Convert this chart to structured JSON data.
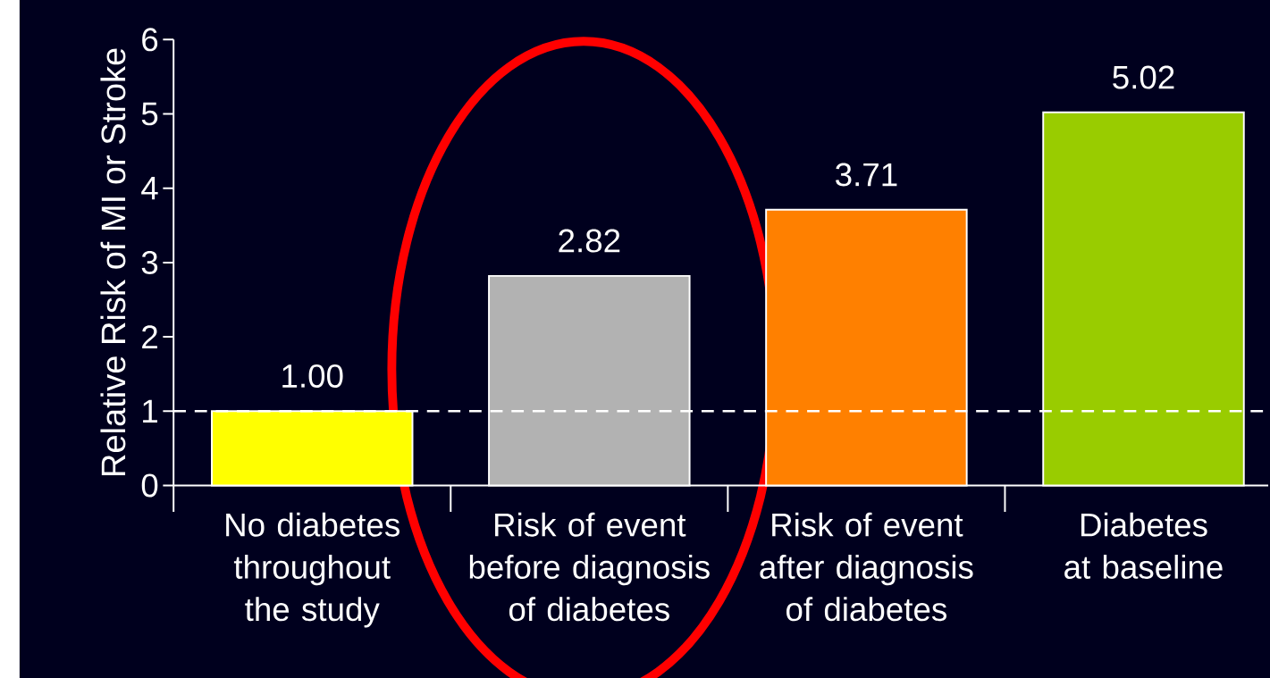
{
  "chart_data": {
    "type": "bar",
    "ylabel": "Relative Risk of MI or Stroke",
    "categories": [
      "No diabetes throughout the study",
      "Risk of event before diagnosis of diabetes",
      "Risk of event after diagnosis of diabetes",
      "Diabetes at baseline"
    ],
    "values": [
      1.0,
      2.82,
      3.71,
      5.02
    ],
    "colors": [
      "#ffff00",
      "#b2b2b2",
      "#ff8000",
      "#99cc00"
    ],
    "value_labels": [
      "1.00",
      "2.82",
      "3.71",
      "5.02"
    ],
    "ylim": [
      0,
      6
    ],
    "yticks": [
      0,
      1,
      2,
      3,
      4,
      5,
      6
    ],
    "ref_lines": [
      {
        "axis": "y",
        "value": 1,
        "color": "#ffffff",
        "line_style": "dashed"
      }
    ]
  }
}
